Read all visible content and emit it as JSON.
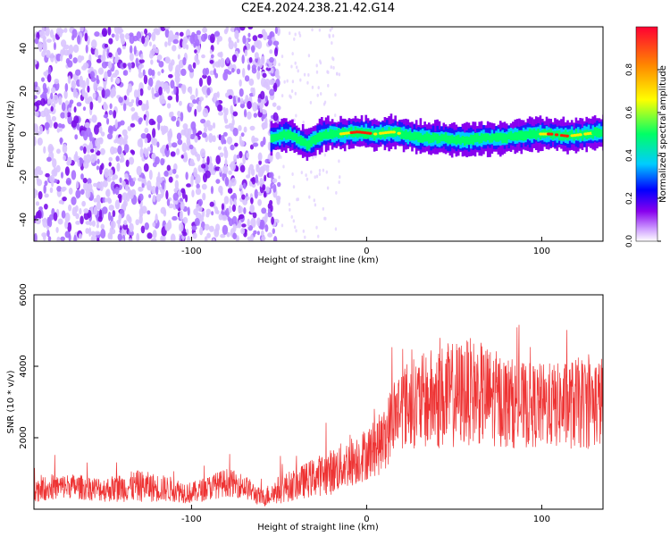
{
  "figure": {
    "title": "C2E4.2024.238.21.42.G14"
  },
  "chart_data": [
    {
      "type": "heatmap",
      "description_role": "spectrogram",
      "xlabel": "Height of straight line (km)",
      "ylabel": "Frequency (Hz)",
      "xlim": [
        -190,
        135
      ],
      "ylim": [
        -50,
        50
      ],
      "xticks": [
        -100,
        0,
        100
      ],
      "yticks": [
        -40,
        -20,
        0,
        20,
        40
      ],
      "grid": false,
      "colorbar": {
        "label": "Normalized spectral amplitude",
        "range": [
          0.0,
          1.0
        ],
        "ticks": [
          "0.0",
          "0.2",
          "0.4",
          "0.6",
          "0.8"
        ],
        "colormap": [
          "#ffffff",
          "#cc99ff",
          "#8800ee",
          "#0000ff",
          "#00ccff",
          "#00ff66",
          "#ffff00",
          "#ff8800",
          "#ff0033"
        ]
      },
      "noise_region_x": [
        -190,
        -50
      ],
      "ridge": {
        "x": [
          -55,
          -45,
          -35,
          -25,
          -15,
          -5,
          5,
          15,
          25,
          35,
          45,
          55,
          65,
          75,
          85,
          95,
          105,
          115,
          125,
          135
        ],
        "freq": [
          -2,
          0,
          -5,
          0,
          0,
          1,
          0,
          1,
          -1,
          -2,
          -2,
          -3,
          -2,
          -2,
          -1,
          0,
          0,
          -1,
          0,
          1
        ],
        "peak_amplitude": [
          0.3,
          0.35,
          0.45,
          0.55,
          0.7,
          0.95,
          0.85,
          0.8,
          0.6,
          0.55,
          0.5,
          0.55,
          0.6,
          0.55,
          0.55,
          0.65,
          0.9,
          0.85,
          0.75,
          0.6
        ]
      }
    },
    {
      "type": "line",
      "xlabel": "Height of straight line (km)",
      "ylabel": "SNR (10 * v/v)",
      "xlim": [
        -190,
        135
      ],
      "ylim": [
        0,
        6000
      ],
      "xticks": [
        -100,
        0,
        100
      ],
      "yticks": [
        2000,
        4000,
        6000
      ],
      "grid": false,
      "series": [
        {
          "color": "#ee3333",
          "x": [
            -190,
            -180,
            -170,
            -160,
            -150,
            -140,
            -130,
            -120,
            -110,
            -100,
            -90,
            -80,
            -70,
            -60,
            -50,
            -40,
            -30,
            -20,
            -10,
            0,
            10,
            15,
            20,
            30,
            40,
            50,
            60,
            70,
            80,
            90,
            100,
            110,
            120,
            130,
            135
          ],
          "mean": [
            550,
            600,
            650,
            600,
            550,
            600,
            650,
            600,
            550,
            450,
            600,
            750,
            650,
            300,
            550,
            700,
            900,
            1050,
            1300,
            1550,
            1900,
            2600,
            2900,
            3000,
            3100,
            3200,
            3300,
            3150,
            3000,
            2900,
            2900,
            2900,
            2950,
            3000,
            3000
          ],
          "spread": [
            350,
            350,
            350,
            350,
            350,
            400,
            450,
            400,
            350,
            300,
            350,
            400,
            350,
            250,
            400,
            450,
            550,
            650,
            700,
            750,
            900,
            1100,
            1200,
            1300,
            1500,
            1500,
            1500,
            1400,
            1300,
            1200,
            1200,
            1200,
            1300,
            1300,
            1300
          ]
        }
      ]
    }
  ]
}
